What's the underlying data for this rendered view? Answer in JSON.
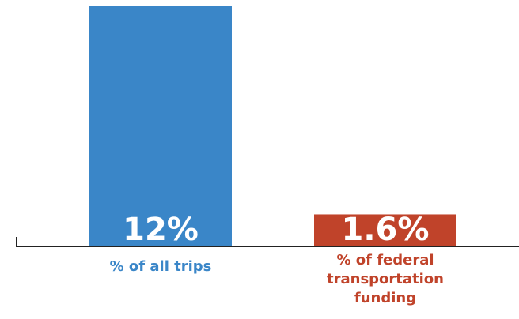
{
  "chart_data": {
    "type": "bar",
    "categories": [
      "% of all trips",
      "% of federal transportation funding"
    ],
    "values": [
      12,
      1.6
    ],
    "value_labels": [
      "12%",
      "1.6%"
    ],
    "colors": [
      "#3a86c8",
      "#c0432a"
    ]
  }
}
